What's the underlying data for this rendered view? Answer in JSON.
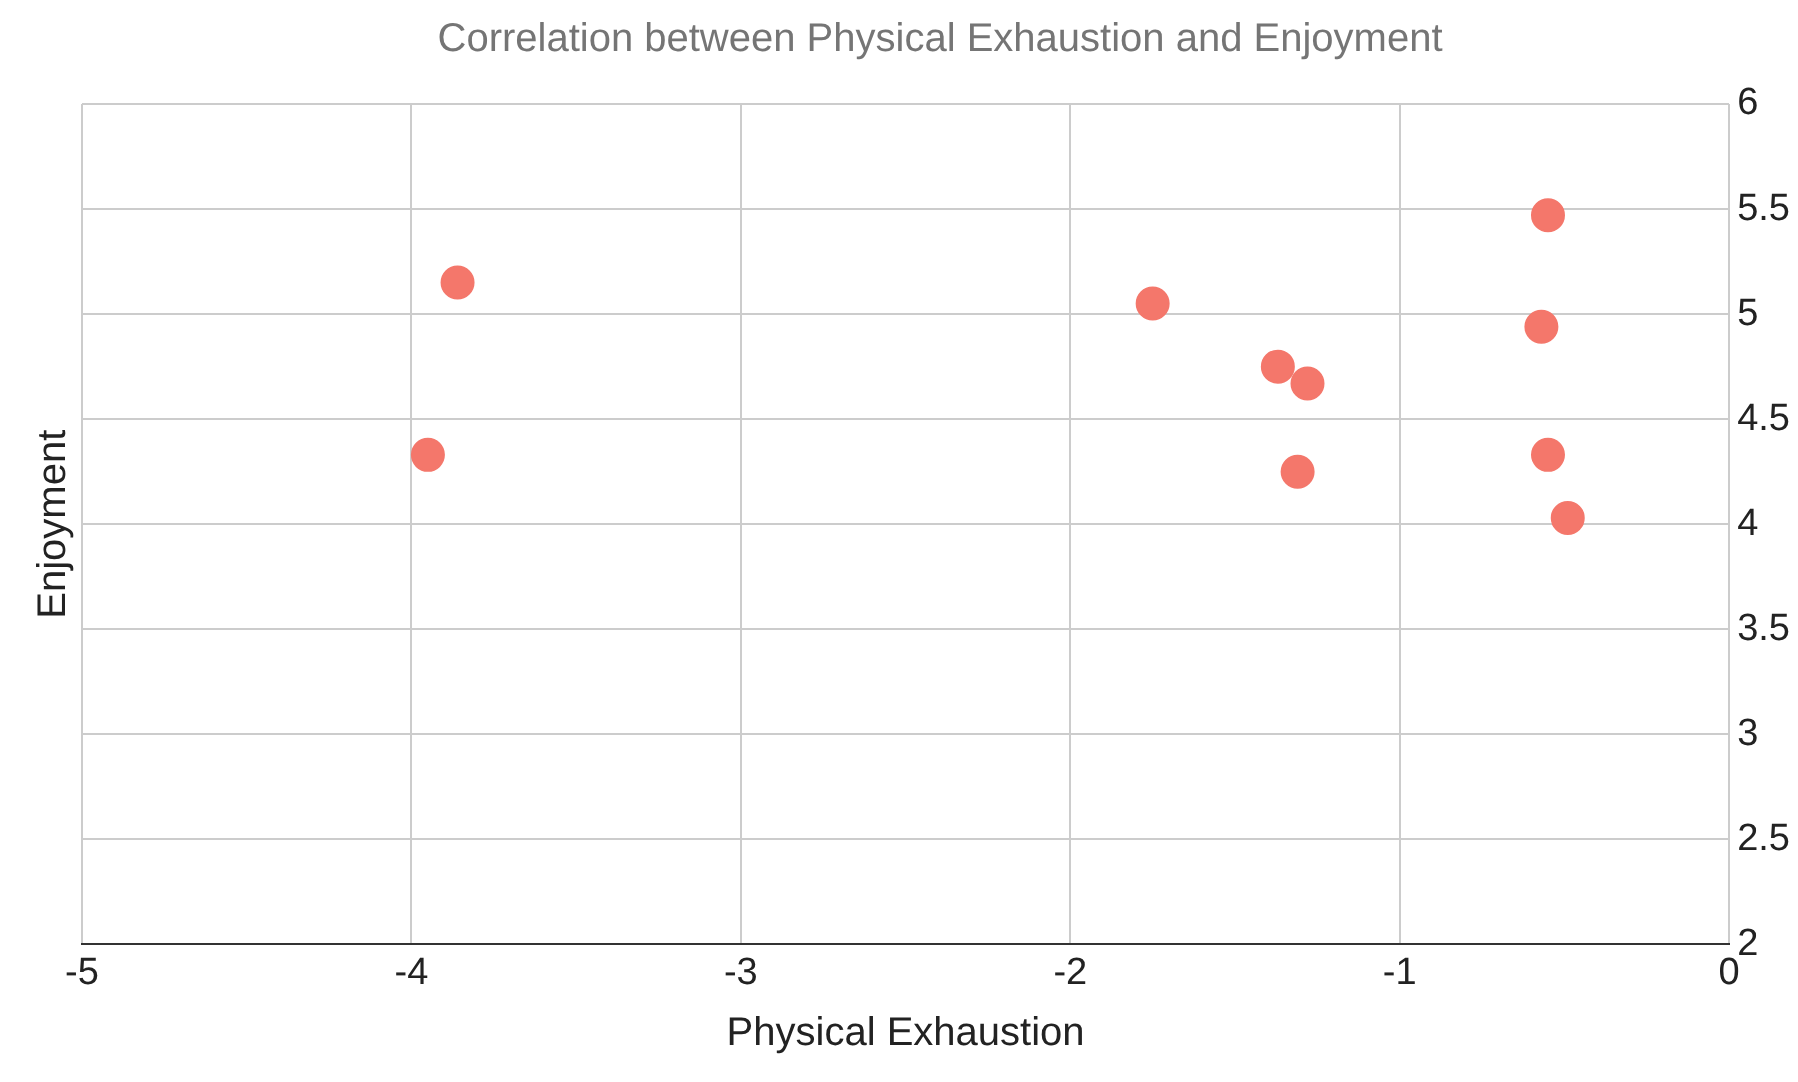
{
  "chart_data": {
    "type": "scatter",
    "title": "Correlation between Physical Exhaustion and Enjoyment",
    "xlabel": "Physical Exhaustion",
    "ylabel": "Enjoyment",
    "x": [
      -3.86,
      -3.95,
      -1.75,
      -1.37,
      -1.28,
      -1.31,
      -0.55,
      -0.57,
      -0.55,
      -0.49
    ],
    "values": [
      5.15,
      4.33,
      5.05,
      4.75,
      4.67,
      4.25,
      5.47,
      4.94,
      4.33,
      4.03
    ],
    "color": "#f4776b",
    "marker": "circle",
    "grid": true,
    "legend": false,
    "xlim": [
      -5,
      0
    ],
    "xticks": [
      -5,
      -4,
      -3,
      -2,
      -1,
      0
    ],
    "ylim": [
      2,
      6
    ],
    "yticks": [
      2,
      2.5,
      3,
      3.5,
      4,
      4.5,
      5,
      5.5,
      6
    ]
  }
}
